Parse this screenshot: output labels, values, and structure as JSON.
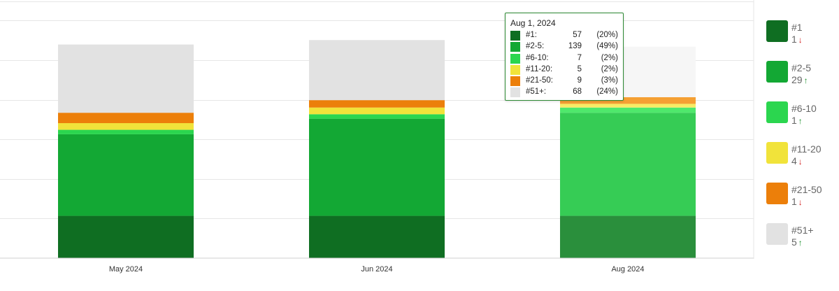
{
  "chart_data": {
    "type": "bar",
    "stacked": true,
    "categories": [
      "May 2024",
      "Jun 2024",
      "Aug 2024"
    ],
    "series": [
      {
        "name": "#1",
        "color": "#0f6e22",
        "values": [
          57,
          57,
          57
        ]
      },
      {
        "name": "#2-5",
        "color": "#13a834",
        "values": [
          110,
          131,
          139
        ]
      },
      {
        "name": "#6-10",
        "color": "#2bd64f",
        "values": [
          6,
          6,
          7
        ]
      },
      {
        "name": "#11-20",
        "color": "#f1e33a",
        "values": [
          9,
          9,
          5
        ]
      },
      {
        "name": "#21-50",
        "color": "#ec7f0a",
        "values": [
          14,
          10,
          9
        ]
      },
      {
        "name": "#51+",
        "color": "#e2e2e2",
        "values": [
          92,
          81,
          68
        ]
      }
    ],
    "grid": true,
    "legend_position": "right",
    "ylim": [
      0,
      348
    ]
  },
  "legend": [
    {
      "name": "#1",
      "change": "1",
      "direction": "down",
      "color": "#0f6e22"
    },
    {
      "name": "#2-5",
      "change": "29",
      "direction": "up",
      "color": "#13a834"
    },
    {
      "name": "#6-10",
      "change": "1",
      "direction": "up",
      "color": "#2bd64f"
    },
    {
      "name": "#11-20",
      "change": "4",
      "direction": "down",
      "color": "#f1e33a"
    },
    {
      "name": "#21-50",
      "change": "1",
      "direction": "down",
      "color": "#ec7f0a"
    },
    {
      "name": "#51+",
      "change": "5",
      "direction": "up",
      "color": "#e2e2e2"
    }
  ],
  "tooltip": {
    "title": "Aug 1, 2024",
    "rows": [
      {
        "label": "#1:",
        "count": "57",
        "percent": "(20%)",
        "color": "#0f6e22"
      },
      {
        "label": "#2-5:",
        "count": "139",
        "percent": "(49%)",
        "color": "#13a834"
      },
      {
        "label": "#6-10:",
        "count": "7",
        "percent": "(2%)",
        "color": "#2bd64f"
      },
      {
        "label": "#11-20:",
        "count": "5",
        "percent": "(2%)",
        "color": "#f1e33a"
      },
      {
        "label": "#21-50:",
        "count": "9",
        "percent": "(3%)",
        "color": "#ec7f0a"
      },
      {
        "label": "#51+:",
        "count": "68",
        "percent": "(24%)",
        "color": "#e2e2e2"
      }
    ]
  },
  "arrows": {
    "up": "🡅",
    "down": "🡇"
  }
}
